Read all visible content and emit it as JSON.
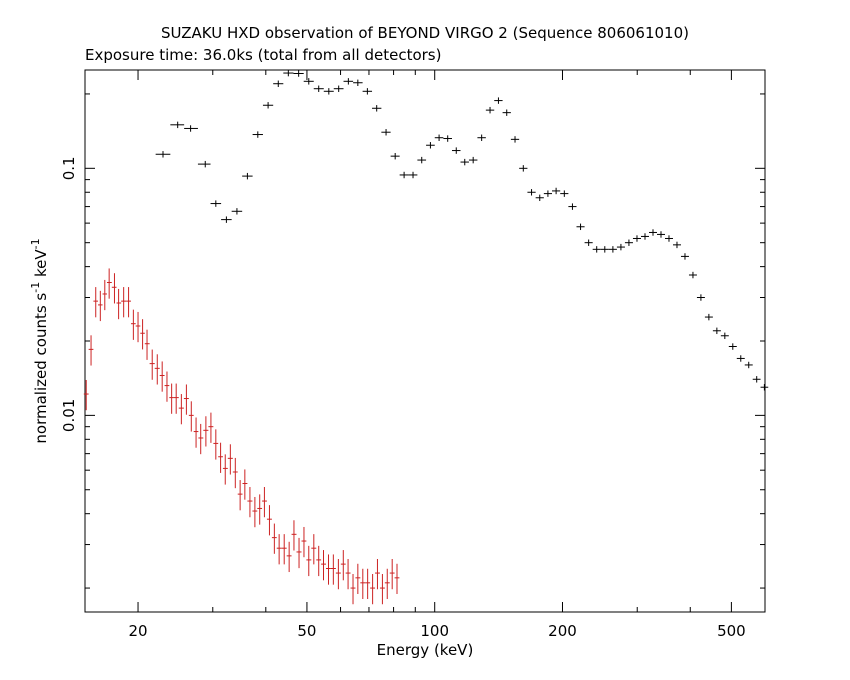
{
  "chart_data": {
    "type": "scatter",
    "title": "SUZAKU HXD observation of BEYOND VIRGO 2 (Sequence 806061010)",
    "subtitle": "Exposure time: 36.0ks (total from all detectors)",
    "xlabel": "Energy (keV)",
    "ylabel_main": "normalized counts s",
    "ylabel_exp1": "-1",
    "ylabel_mid": " keV",
    "ylabel_exp2": "-1",
    "x_scale": "log",
    "y_scale": "log",
    "xlim": [
      15,
      600
    ],
    "ylim": [
      0.0016,
      0.25
    ],
    "x_ticks": [
      {
        "value": 20,
        "label": "20"
      },
      {
        "value": 50,
        "label": "50"
      },
      {
        "value": 100,
        "label": "100"
      },
      {
        "value": 200,
        "label": "200"
      },
      {
        "value": 500,
        "label": "500"
      }
    ],
    "y_ticks": [
      {
        "value": 0.1,
        "label": "0.1"
      },
      {
        "value": 0.01,
        "label": "0.01"
      }
    ],
    "series": [
      {
        "color": "#000000",
        "points": [
          [
            22.9,
            0.114
          ],
          [
            24.8,
            0.15
          ],
          [
            26.6,
            0.145
          ],
          [
            28.8,
            0.104
          ],
          [
            30.5,
            0.072
          ],
          [
            32.3,
            0.062
          ],
          [
            34.2,
            0.067
          ],
          [
            36.2,
            0.093
          ],
          [
            38.3,
            0.137
          ],
          [
            40.5,
            0.18
          ],
          [
            42.8,
            0.22
          ],
          [
            45.2,
            0.243
          ],
          [
            47.8,
            0.242
          ],
          [
            50.5,
            0.225
          ],
          [
            53.3,
            0.21
          ],
          [
            56.3,
            0.205
          ],
          [
            59.4,
            0.21
          ],
          [
            62.6,
            0.225
          ],
          [
            65.9,
            0.222
          ],
          [
            69.4,
            0.205
          ],
          [
            73.0,
            0.175
          ],
          [
            76.8,
            0.14
          ],
          [
            80.7,
            0.112
          ],
          [
            84.7,
            0.094
          ],
          [
            88.9,
            0.094
          ],
          [
            93.2,
            0.108
          ],
          [
            97.7,
            0.124
          ],
          [
            102.4,
            0.133
          ],
          [
            107.3,
            0.132
          ],
          [
            112.4,
            0.118
          ],
          [
            117.7,
            0.106
          ],
          [
            123.2,
            0.108
          ],
          [
            129.0,
            0.133
          ],
          [
            135.0,
            0.172
          ],
          [
            141.3,
            0.188
          ],
          [
            147.8,
            0.168
          ],
          [
            154.6,
            0.131
          ],
          [
            161.7,
            0.1
          ],
          [
            169.1,
            0.08
          ],
          [
            176.8,
            0.076
          ],
          [
            184.8,
            0.079
          ],
          [
            193.2,
            0.081
          ],
          [
            202.0,
            0.079
          ],
          [
            211.1,
            0.07
          ],
          [
            220.6,
            0.058
          ],
          [
            230.5,
            0.05
          ],
          [
            240.8,
            0.047
          ],
          [
            251.6,
            0.047
          ],
          [
            262.9,
            0.047
          ],
          [
            274.6,
            0.048
          ],
          [
            286.8,
            0.05
          ],
          [
            299.6,
            0.052
          ],
          [
            312.9,
            0.053
          ],
          [
            326.8,
            0.055
          ],
          [
            341.3,
            0.054
          ],
          [
            356.4,
            0.052
          ],
          [
            372.2,
            0.049
          ],
          [
            388.7,
            0.044
          ],
          [
            405.9,
            0.037
          ],
          [
            423.8,
            0.03
          ],
          [
            442.5,
            0.025
          ],
          [
            462.1,
            0.022
          ],
          [
            482.5,
            0.021
          ],
          [
            503.8,
            0.019
          ],
          [
            526.1,
            0.017
          ],
          [
            549.3,
            0.016
          ],
          [
            573.6,
            0.014
          ],
          [
            598.0,
            0.013
          ]
        ]
      },
      {
        "color": "#cc2222",
        "points": [
          [
            15.1,
            0.0122
          ],
          [
            15.5,
            0.0185
          ],
          [
            15.9,
            0.029
          ],
          [
            16.3,
            0.028
          ],
          [
            16.7,
            0.031
          ],
          [
            17.1,
            0.0345
          ],
          [
            17.6,
            0.033
          ],
          [
            18.0,
            0.0285
          ],
          [
            18.5,
            0.029
          ],
          [
            19.0,
            0.029
          ],
          [
            19.5,
            0.0235
          ],
          [
            20.0,
            0.023
          ],
          [
            20.5,
            0.0215
          ],
          [
            21.0,
            0.0195
          ],
          [
            21.6,
            0.0162
          ],
          [
            22.2,
            0.0155
          ],
          [
            22.8,
            0.0145
          ],
          [
            23.4,
            0.0132
          ],
          [
            24.0,
            0.0118
          ],
          [
            24.6,
            0.0118
          ],
          [
            25.3,
            0.0107
          ],
          [
            26.0,
            0.0117
          ],
          [
            26.7,
            0.01
          ],
          [
            27.4,
            0.0086
          ],
          [
            28.1,
            0.0081
          ],
          [
            28.9,
            0.0087
          ],
          [
            29.7,
            0.009
          ],
          [
            30.5,
            0.0077
          ],
          [
            31.3,
            0.0068
          ],
          [
            32.1,
            0.0061
          ],
          [
            33.0,
            0.0067
          ],
          [
            33.9,
            0.0059
          ],
          [
            34.8,
            0.0048
          ],
          [
            35.7,
            0.0053
          ],
          [
            36.7,
            0.0045
          ],
          [
            37.7,
            0.0041
          ],
          [
            38.7,
            0.0042
          ],
          [
            39.7,
            0.0045
          ],
          [
            40.8,
            0.0038
          ],
          [
            41.9,
            0.0032
          ],
          [
            43.0,
            0.0029
          ],
          [
            44.2,
            0.0029
          ],
          [
            45.4,
            0.0027
          ],
          [
            46.6,
            0.0033
          ],
          [
            47.9,
            0.0028
          ],
          [
            49.2,
            0.0031
          ],
          [
            50.5,
            0.0026
          ],
          [
            51.9,
            0.0029
          ],
          [
            53.3,
            0.0026
          ],
          [
            54.7,
            0.0025
          ],
          [
            56.2,
            0.0024
          ],
          [
            57.7,
            0.0024
          ],
          [
            59.3,
            0.0023
          ],
          [
            60.9,
            0.0025
          ],
          [
            62.5,
            0.0023
          ],
          [
            64.2,
            0.002
          ],
          [
            65.9,
            0.0022
          ],
          [
            67.7,
            0.0021
          ],
          [
            69.5,
            0.0021
          ],
          [
            71.4,
            0.002
          ],
          [
            73.3,
            0.0023
          ],
          [
            75.3,
            0.002
          ],
          [
            77.3,
            0.0021
          ],
          [
            79.4,
            0.0023
          ],
          [
            81.5,
            0.0022
          ]
        ]
      }
    ]
  }
}
